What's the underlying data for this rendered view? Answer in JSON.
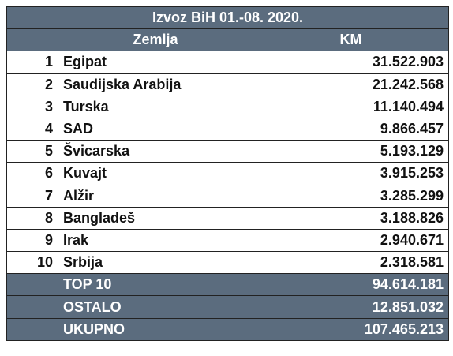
{
  "table": {
    "title": "Izvoz BiH 01.-08. 2020.",
    "header": [
      "Zemlja",
      "KM"
    ],
    "rows": [
      [
        "1",
        "Egipat",
        "31.522.903"
      ],
      [
        "2",
        "Saudijska Arabija",
        "21.242.568"
      ],
      [
        "3",
        "Turska",
        "11.140.494"
      ],
      [
        "4",
        "SAD",
        "9.866.457"
      ],
      [
        "5",
        "Švicarska",
        "5.193.129"
      ],
      [
        "6",
        "Kuvajt",
        "3.915.253"
      ],
      [
        "7",
        "Alžir",
        "3.285.299"
      ],
      [
        "8",
        "Bangladeš",
        "3.188.826"
      ],
      [
        "9",
        "Irak",
        "2.940.671"
      ],
      [
        "10",
        "Srbija",
        "2.318.581"
      ]
    ],
    "totals": [
      [
        "TOP 10",
        "94.614.181"
      ],
      [
        "OSTALO",
        "12.851.032"
      ],
      [
        "UKUPNO",
        "107.465.213"
      ]
    ]
  }
}
